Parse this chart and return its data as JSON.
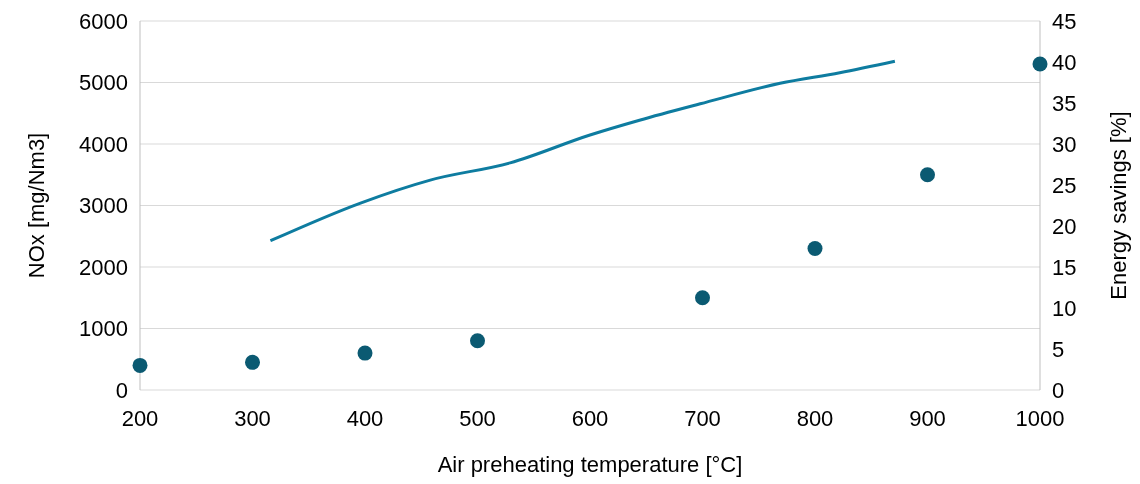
{
  "chart_data": {
    "type": "scatter",
    "xlabel": "Air preheating temperature [°C]",
    "ylabel": "NOx [mg/Nm3]",
    "y2label": "Energy savings [%]",
    "xlim": [
      200,
      1000
    ],
    "xticks": [
      200,
      300,
      400,
      500,
      600,
      700,
      800,
      900,
      1000
    ],
    "ylim": [
      0,
      6000
    ],
    "yticks": [
      0,
      1000,
      2000,
      3000,
      4000,
      5000,
      6000
    ],
    "y2lim": [
      0,
      45
    ],
    "y2ticks": [
      0,
      5,
      10,
      15,
      20,
      25,
      30,
      35,
      40,
      45
    ],
    "grid": "y",
    "marker": "circle",
    "series": [
      {
        "color": "#0b5a72",
        "x": [
          200,
          300,
          400,
          500,
          700,
          800,
          900,
          1000
        ],
        "values": [
          400,
          450,
          600,
          800,
          1500,
          2300,
          3500,
          5300
        ]
      },
      {
        "type": "line",
        "axis": "y2",
        "color": "#0e7ca0",
        "marker": "none",
        "x": [
          316,
          396,
          458,
          529,
          600,
          644,
          698,
          769,
          822,
          871
        ],
        "values": [
          18.2,
          22.8,
          25.6,
          27.7,
          31.1,
          32.9,
          34.9,
          37.4,
          38.7,
          40.1
        ]
      }
    ]
  }
}
